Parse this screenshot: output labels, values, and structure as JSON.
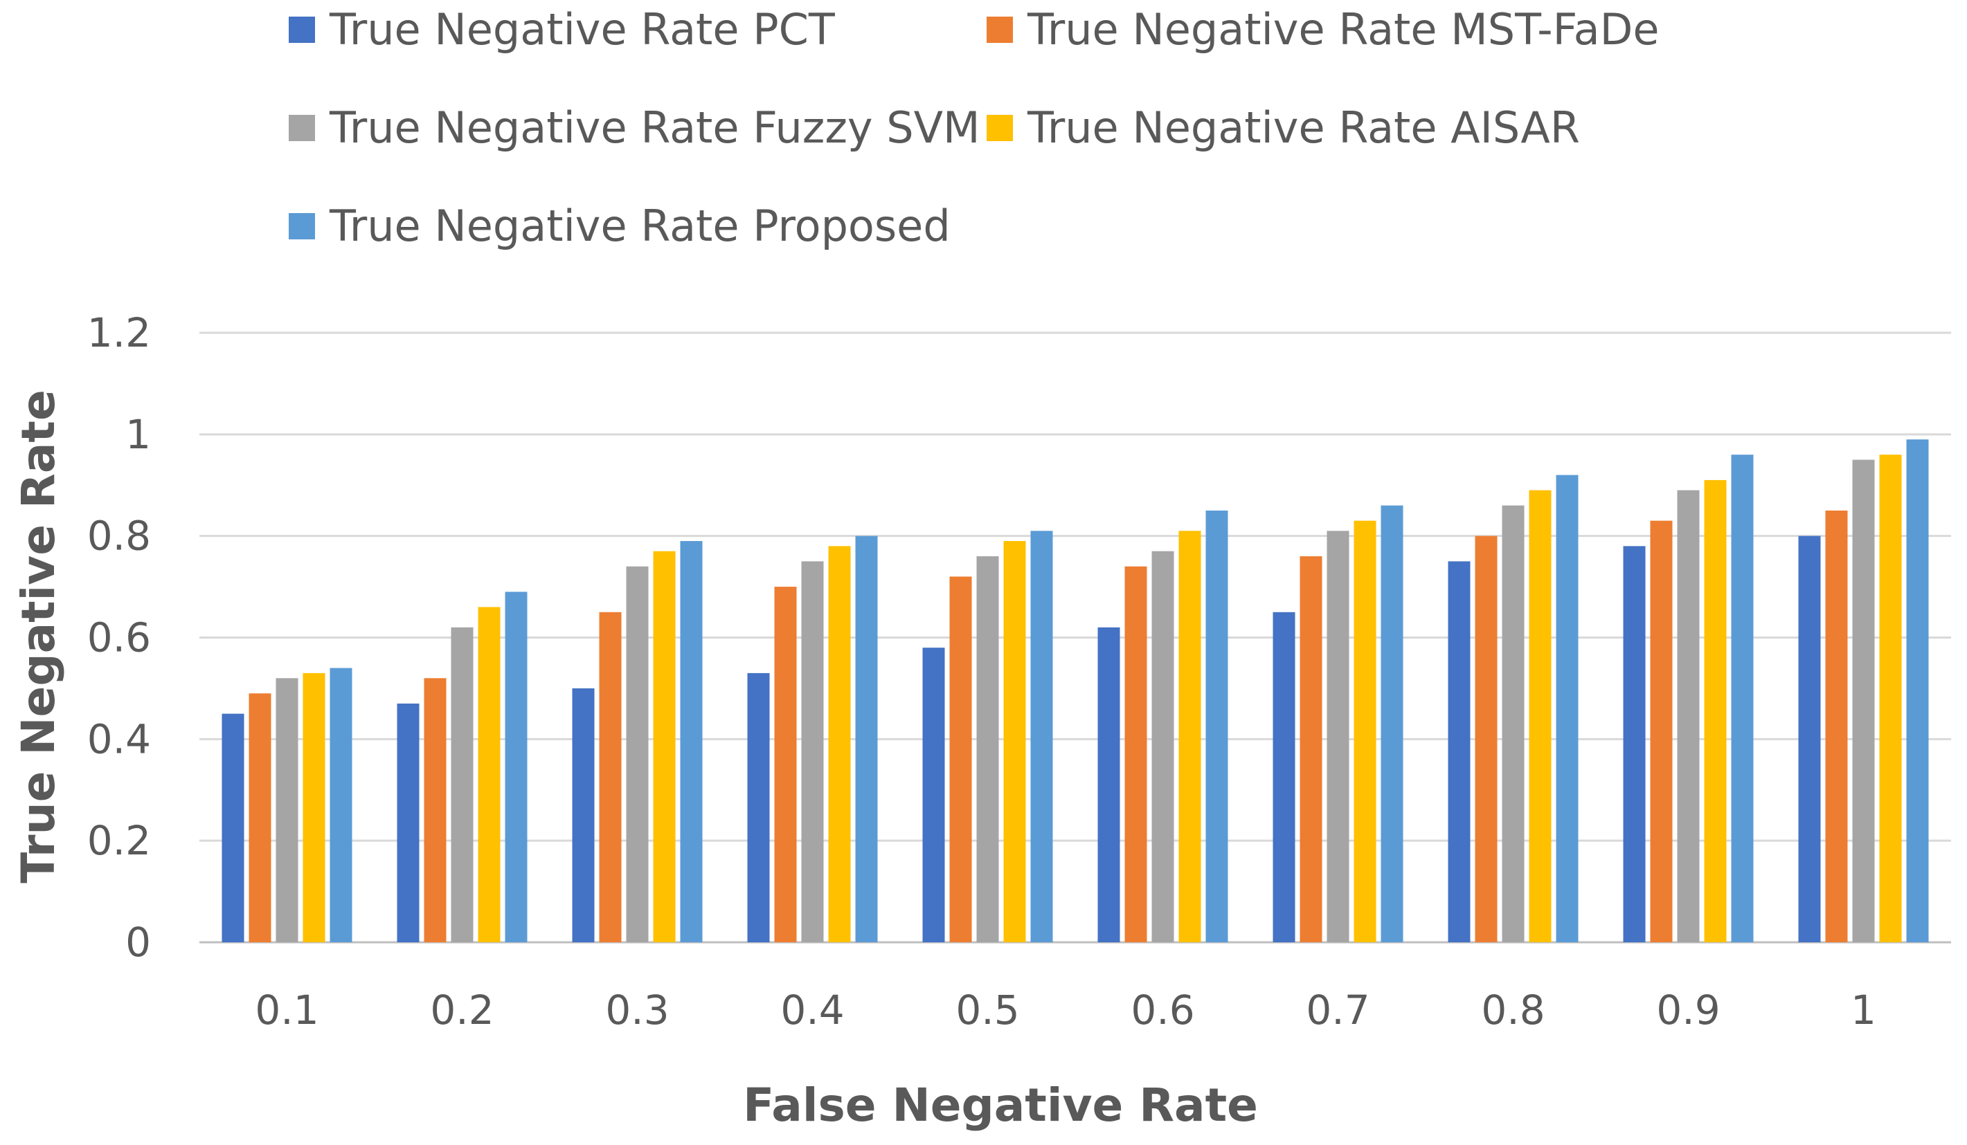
{
  "chart_data": {
    "type": "bar",
    "title": "",
    "xlabel": "False Negative Rate",
    "ylabel": "True Negative Rate",
    "categories": [
      "0.1",
      "0.2",
      "0.3",
      "0.4",
      "0.5",
      "0.6",
      "0.7",
      "0.8",
      "0.9",
      "1"
    ],
    "ylim": [
      0,
      1.2
    ],
    "yticks": [
      0,
      0.2,
      0.4,
      0.6,
      0.8,
      1,
      1.2
    ],
    "ytick_labels": [
      "0",
      "0.2",
      "0.4",
      "0.6",
      "0.8",
      "1",
      "1.2"
    ],
    "grid": true,
    "legend_position": "top",
    "series": [
      {
        "name": "True Negative Rate PCT",
        "color": "#4472C4",
        "values": [
          0.45,
          0.47,
          0.5,
          0.53,
          0.58,
          0.62,
          0.65,
          0.75,
          0.78,
          0.8
        ]
      },
      {
        "name": "True Negative Rate MST-FaDe",
        "color": "#ED7D31",
        "values": [
          0.49,
          0.52,
          0.65,
          0.7,
          0.72,
          0.74,
          0.76,
          0.8,
          0.83,
          0.85
        ]
      },
      {
        "name": "True Negative Rate Fuzzy SVM",
        "color": "#A5A5A5",
        "values": [
          0.52,
          0.62,
          0.74,
          0.75,
          0.76,
          0.77,
          0.81,
          0.86,
          0.89,
          0.95
        ]
      },
      {
        "name": "True Negative Rate AISAR",
        "color": "#FFC000",
        "values": [
          0.53,
          0.66,
          0.77,
          0.78,
          0.79,
          0.81,
          0.83,
          0.89,
          0.91,
          0.96
        ]
      },
      {
        "name": "True Negative Rate Proposed",
        "color": "#5B9BD5",
        "values": [
          0.54,
          0.69,
          0.79,
          0.8,
          0.81,
          0.85,
          0.86,
          0.92,
          0.96,
          0.99
        ]
      }
    ]
  }
}
